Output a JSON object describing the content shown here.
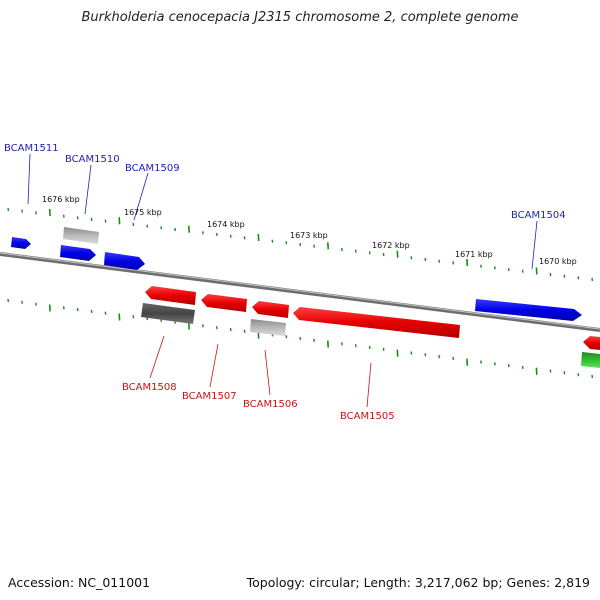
{
  "title": "Burkholderia cenocepacia J2315 chromosome 2, complete genome",
  "footer": {
    "accession": "Accession: NC_011001",
    "topology": "Topology: circular; Length: 3,217,062 bp; Genes: 2,819"
  },
  "colors": {
    "forward_gene": "#0000e0",
    "reverse_gene": "#e60000",
    "pseudo_gene": "#b0b0b0",
    "dark_gene": "#555555",
    "other_feature": "#1aa01a",
    "tick": "#1a8c1a",
    "backbone": "#808080",
    "label_forward": "#1f1fb8",
    "label_reverse": "#c81414"
  },
  "scale_labels": [
    "1676 kbp",
    "1675 kbp",
    "1674 kbp",
    "1673 kbp",
    "1672 kbp",
    "1671 kbp",
    "1670 kbp"
  ],
  "gene_labels": [
    "BCAM1511",
    "BCAM1510",
    "BCAM1509",
    "BCAM1504",
    "BCAM1508",
    "BCAM1507",
    "BCAM1506",
    "BCAM1505"
  ]
}
